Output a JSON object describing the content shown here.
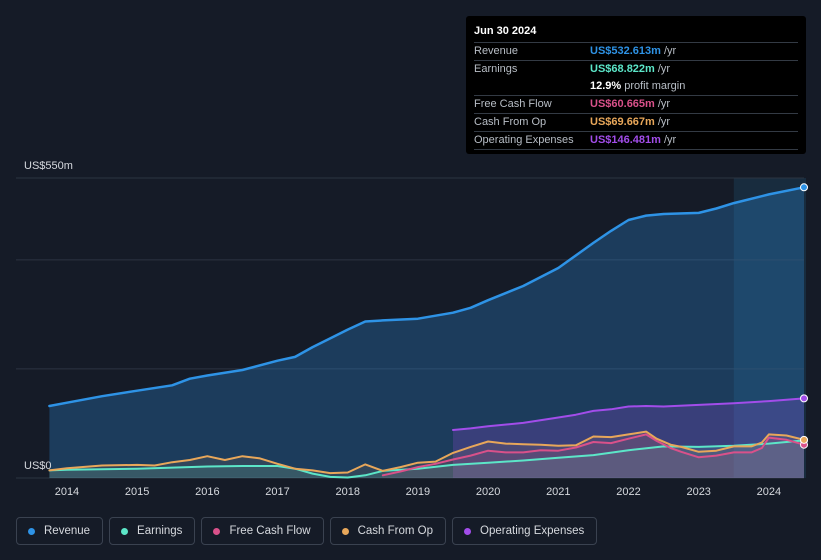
{
  "colors": {
    "revenue": "#2e93e6",
    "earnings": "#5ce6c8",
    "fcf": "#d9518a",
    "cfo": "#e8a75a",
    "opex": "#a24dea",
    "grid": "#2c3442",
    "forecast_band": "#1c3a52"
  },
  "tooltip": {
    "date": "Jun 30 2024",
    "rows": [
      {
        "label": "Revenue",
        "value": "US$532.613m",
        "unit": "/yr",
        "color": "#2e93e6"
      },
      {
        "label": "Earnings",
        "value": "US$68.822m",
        "unit": "/yr",
        "color": "#5ce6c8"
      },
      {
        "label": "",
        "value": "12.9%",
        "unit": "profit margin",
        "color": "#ffffff"
      },
      {
        "label": "Free Cash Flow",
        "value": "US$60.665m",
        "unit": "/yr",
        "color": "#d9518a"
      },
      {
        "label": "Cash From Op",
        "value": "US$69.667m",
        "unit": "/yr",
        "color": "#e8a75a"
      },
      {
        "label": "Operating Expenses",
        "value": "US$146.481m",
        "unit": "/yr",
        "color": "#a24dea"
      }
    ]
  },
  "legend": [
    {
      "label": "Revenue",
      "color": "#2e93e6"
    },
    {
      "label": "Earnings",
      "color": "#5ce6c8"
    },
    {
      "label": "Free Cash Flow",
      "color": "#d9518a"
    },
    {
      "label": "Cash From Op",
      "color": "#e8a75a"
    },
    {
      "label": "Operating Expenses",
      "color": "#a24dea"
    }
  ],
  "chart_data": {
    "type": "line",
    "title": "",
    "y_top_label": "US$550m",
    "y_bottom_label": "US$0",
    "ylim": [
      0,
      550
    ],
    "xlim": [
      2013.73,
      2024.5
    ],
    "forecast_start": 2023.5,
    "x_ticks": [
      "2014",
      "2015",
      "2016",
      "2017",
      "2018",
      "2019",
      "2020",
      "2021",
      "2022",
      "2023",
      "2024"
    ],
    "series": [
      {
        "name": "Revenue",
        "key": "revenue",
        "x": [
          2013.75,
          2014.0,
          2014.5,
          2015.0,
          2015.5,
          2015.75,
          2016.0,
          2016.5,
          2017.0,
          2017.25,
          2017.5,
          2017.75,
          2018.0,
          2018.25,
          2018.5,
          2019.0,
          2019.5,
          2019.75,
          2020.0,
          2020.5,
          2021.0,
          2021.5,
          2021.75,
          2022.0,
          2022.25,
          2022.5,
          2023.0,
          2023.25,
          2023.5,
          2024.0,
          2024.5
        ],
        "values": [
          132,
          138,
          150,
          160,
          170,
          182,
          188,
          198,
          215,
          222,
          240,
          256,
          272,
          287,
          289,
          292,
          303,
          312,
          326,
          352,
          385,
          431,
          453,
          473,
          481,
          484,
          486,
          494,
          504,
          520,
          533
        ]
      },
      {
        "name": "Earnings",
        "key": "earnings",
        "x": [
          2013.75,
          2014.0,
          2015.0,
          2015.5,
          2016.0,
          2016.5,
          2017.0,
          2017.25,
          2017.5,
          2017.75,
          2018.0,
          2018.25,
          2018.5,
          2019.0,
          2019.5,
          2020.0,
          2020.5,
          2021.0,
          2021.5,
          2022.0,
          2022.5,
          2023.0,
          2023.5,
          2024.0,
          2024.5
        ],
        "values": [
          14,
          15,
          17,
          19,
          21,
          22,
          22,
          17,
          8,
          2,
          1,
          5,
          13,
          17,
          24,
          28,
          32,
          37,
          42,
          51,
          58,
          57,
          59,
          63,
          69
        ]
      },
      {
        "name": "Free Cash Flow",
        "key": "fcf",
        "x": [
          2018.5,
          2018.75,
          2019.0,
          2019.25,
          2019.5,
          2019.75,
          2020.0,
          2020.25,
          2020.5,
          2020.75,
          2021.0,
          2021.25,
          2021.5,
          2021.75,
          2022.0,
          2022.25,
          2022.4,
          2022.6,
          2022.75,
          2023.0,
          2023.25,
          2023.5,
          2023.75,
          2023.9,
          2024.0,
          2024.25,
          2024.5
        ],
        "values": [
          5,
          12,
          20,
          26,
          34,
          41,
          50,
          47,
          47,
          51,
          50,
          56,
          66,
          64,
          72,
          80,
          68,
          55,
          48,
          38,
          41,
          47,
          47,
          55,
          74,
          70,
          61
        ]
      },
      {
        "name": "Cash From Op",
        "key": "cfo",
        "x": [
          2013.75,
          2014.0,
          2014.5,
          2015.0,
          2015.25,
          2015.5,
          2015.75,
          2016.0,
          2016.25,
          2016.5,
          2016.75,
          2017.0,
          2017.25,
          2017.5,
          2017.75,
          2018.0,
          2018.25,
          2018.5,
          2018.75,
          2019.0,
          2019.25,
          2019.5,
          2019.75,
          2020.0,
          2020.25,
          2020.5,
          2020.75,
          2021.0,
          2021.25,
          2021.5,
          2021.75,
          2022.0,
          2022.25,
          2022.4,
          2022.6,
          2022.75,
          2023.0,
          2023.25,
          2023.5,
          2023.75,
          2023.9,
          2024.0,
          2024.25,
          2024.5
        ],
        "values": [
          14,
          18,
          23,
          24,
          23,
          29,
          33,
          40,
          33,
          40,
          36,
          26,
          17,
          14,
          9,
          10,
          25,
          13,
          20,
          28,
          30,
          46,
          57,
          67,
          63,
          62,
          61,
          59,
          60,
          76,
          75,
          80,
          85,
          72,
          61,
          57,
          48,
          50,
          58,
          58,
          65,
          80,
          78,
          70
        ]
      },
      {
        "name": "Operating Expenses",
        "key": "opex",
        "x": [
          2019.5,
          2019.75,
          2020.0,
          2020.5,
          2021.0,
          2021.25,
          2021.5,
          2021.75,
          2022.0,
          2022.25,
          2022.5,
          2023.0,
          2023.5,
          2024.0,
          2024.5
        ],
        "values": [
          88,
          91,
          95,
          101,
          111,
          116,
          123,
          126,
          131,
          132,
          131,
          134,
          137,
          141,
          146
        ]
      }
    ]
  }
}
